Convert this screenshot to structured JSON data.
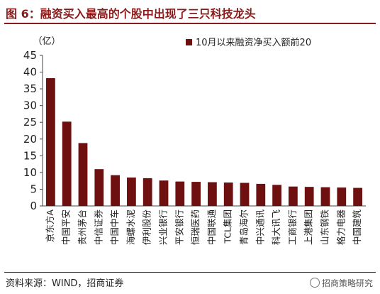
{
  "title": "图 6：融资买入最高的个股中出现了三只科技龙头",
  "source": "资料来源：WIND，招商证券",
  "watermark": "招商策略研究",
  "chart_data": {
    "type": "bar",
    "unit_label": "（亿）",
    "legend": "10月以来融资净买入额前20",
    "legend_position": "top-right",
    "grid": false,
    "ylim": [
      0,
      45
    ],
    "yticks": [
      0,
      5,
      10,
      15,
      20,
      25,
      30,
      35,
      40,
      45
    ],
    "bar_color": "#6e1010",
    "categories": [
      "京东方A",
      "中国平安",
      "贵州茅台",
      "中信证券",
      "中国中车",
      "海螺水泥",
      "伊利股份",
      "兴业银行",
      "平安银行",
      "恒瑞医药",
      "中国联通",
      "TCL集团",
      "青岛海尔",
      "中兴通讯",
      "科大讯飞",
      "工商银行",
      "上港集团",
      "山东钢铁",
      "格力电器",
      "中国建筑"
    ],
    "values": [
      38.2,
      25.2,
      18.8,
      11.0,
      9.2,
      8.5,
      8.3,
      7.6,
      7.3,
      7.2,
      7.1,
      7.0,
      6.9,
      6.6,
      6.3,
      5.8,
      5.7,
      5.6,
      5.5,
      5.4
    ]
  }
}
